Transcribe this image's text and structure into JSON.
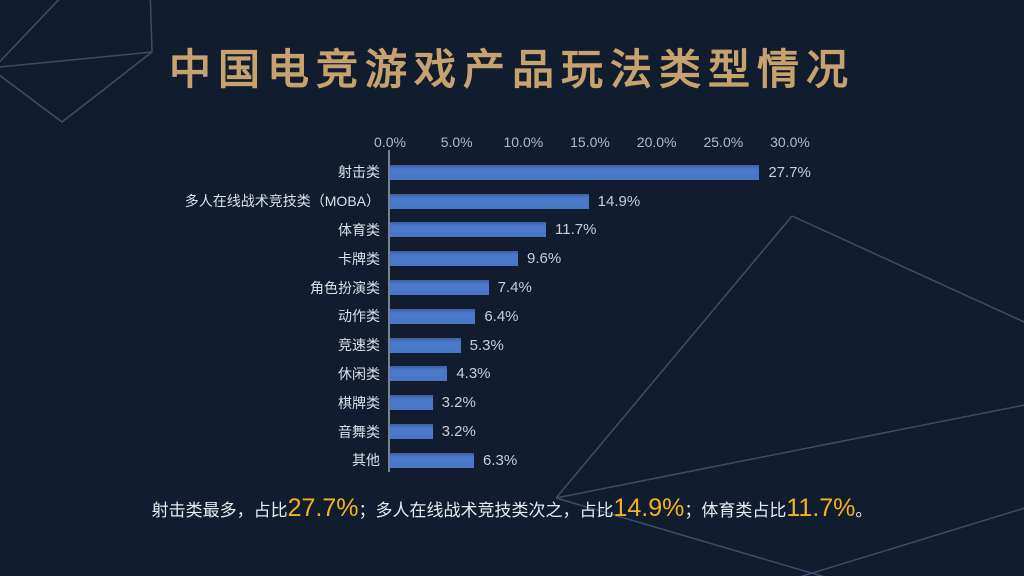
{
  "page": {
    "background_color": "#111c2e"
  },
  "title": "中国电竞游戏产品玩法类型情况",
  "chart_data": {
    "type": "bar",
    "orientation": "horizontal",
    "title": "中国电竞游戏产品玩法类型情况",
    "categories": [
      "射击类",
      "多人在线战术竞技类（MOBA）",
      "体育类",
      "卡牌类",
      "角色扮演类",
      "动作类",
      "竞速类",
      "休闲类",
      "棋牌类",
      "音舞类",
      "其他"
    ],
    "values": [
      27.7,
      14.9,
      11.7,
      9.6,
      7.4,
      6.4,
      5.3,
      4.3,
      3.2,
      3.2,
      6.3
    ],
    "value_labels": [
      "27.7%",
      "14.9%",
      "11.7%",
      "9.6%",
      "7.4%",
      "6.4%",
      "5.3%",
      "4.3%",
      "3.2%",
      "3.2%",
      "6.3%"
    ],
    "x_ticks": [
      "0.0%",
      "5.0%",
      "10.0%",
      "15.0%",
      "20.0%",
      "25.0%",
      "30.0%"
    ],
    "x_tick_values": [
      0,
      5,
      10,
      15,
      20,
      25,
      30
    ],
    "xlim": [
      0,
      30
    ],
    "xlabel": "",
    "ylabel": "",
    "grid": false,
    "legend": false,
    "bar_color": "#4a76c8"
  },
  "caption": {
    "segments": [
      {
        "text": "射击类最多，占比",
        "highlight": false
      },
      {
        "text": "27.7%",
        "highlight": true
      },
      {
        "text": "；多人在线战术竞技类次之，占比",
        "highlight": false
      },
      {
        "text": "14.9%",
        "highlight": true
      },
      {
        "text": "；体育类占比",
        "highlight": false
      },
      {
        "text": "11.7%",
        "highlight": true
      },
      {
        "text": "。",
        "highlight": false
      }
    ]
  },
  "colors": {
    "background": "#111c2e",
    "title_gold": "#c6a26e",
    "bar_blue": "#4a76c8",
    "highlight_yellow": "#f0b41e",
    "axis_gray": "#8c94a0",
    "tick_label_gray": "#b4bac4",
    "category_label": "#dce1e8",
    "decoration_line": "#3f4e6b"
  }
}
